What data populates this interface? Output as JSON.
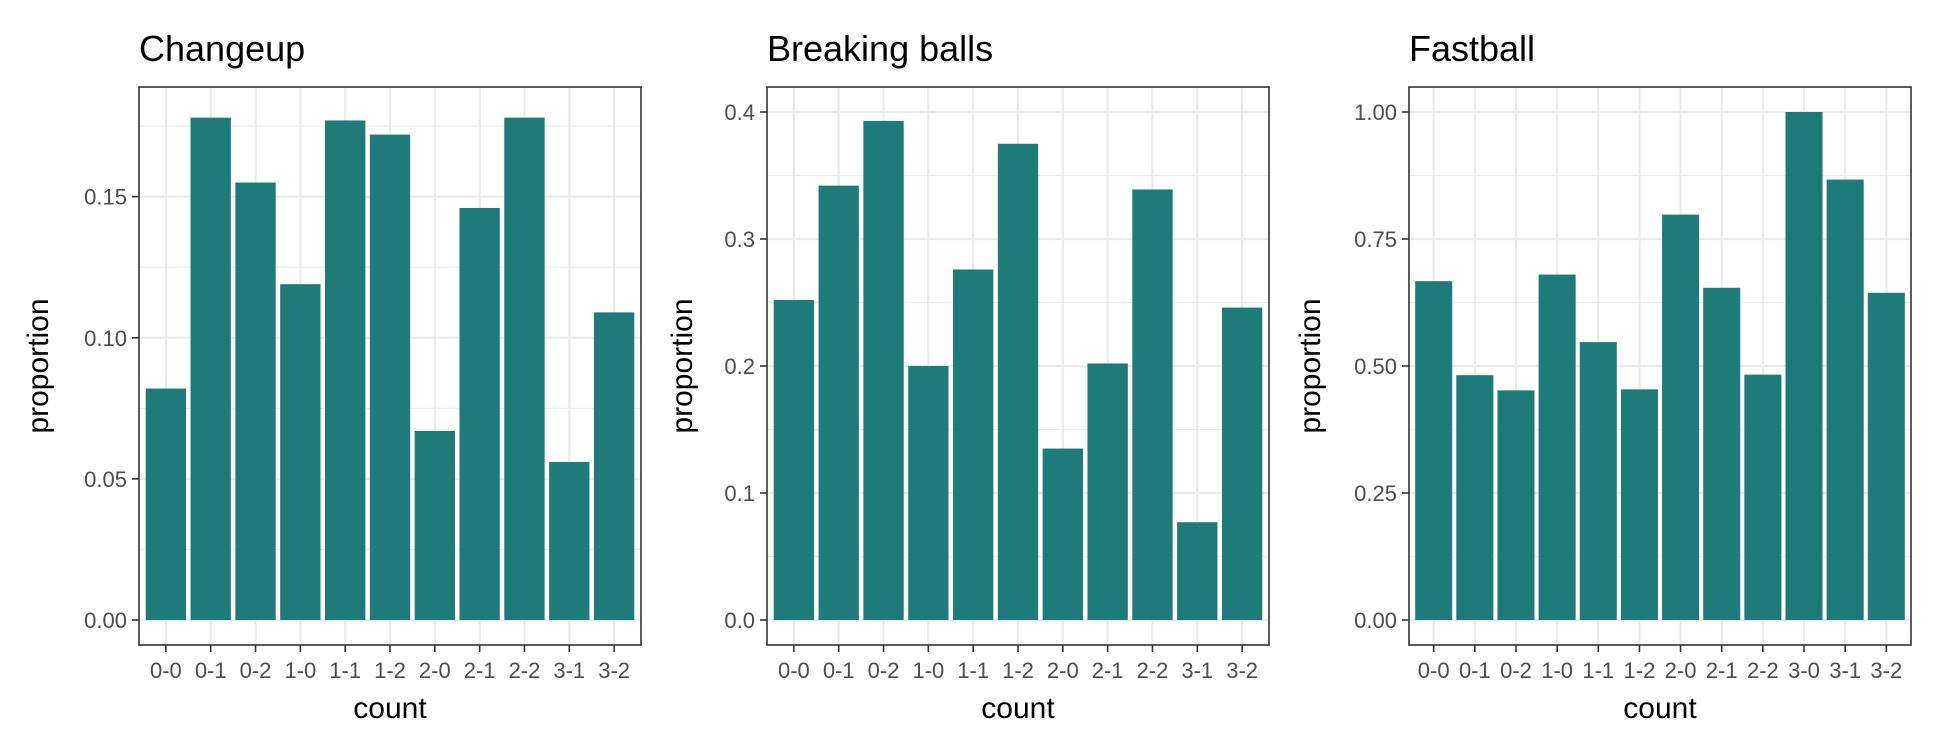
{
  "chart_data": [
    {
      "type": "bar",
      "title": "Changeup",
      "xlabel": "count",
      "ylabel": "proportion",
      "categories": [
        "0-0",
        "0-1",
        "0-2",
        "1-0",
        "1-1",
        "1-2",
        "2-0",
        "2-1",
        "2-2",
        "3-1",
        "3-2"
      ],
      "values": [
        0.082,
        0.178,
        0.155,
        0.119,
        0.177,
        0.172,
        0.067,
        0.146,
        0.178,
        0.056,
        0.109
      ],
      "ylim": [
        0,
        0.18
      ],
      "yticks": [
        0.0,
        0.05,
        0.1,
        0.15
      ],
      "ytick_labels": [
        "0.00",
        "0.05",
        "0.10",
        "0.15"
      ],
      "bar_color": "#1f7a7a",
      "grid": true
    },
    {
      "type": "bar",
      "title": "Breaking balls",
      "xlabel": "count",
      "ylabel": "proportion",
      "categories": [
        "0-0",
        "0-1",
        "0-2",
        "1-0",
        "1-1",
        "1-2",
        "2-0",
        "2-1",
        "2-2",
        "3-1",
        "3-2"
      ],
      "values": [
        0.252,
        0.342,
        0.393,
        0.2,
        0.276,
        0.375,
        0.135,
        0.202,
        0.339,
        0.077,
        0.246
      ],
      "ylim": [
        0,
        0.4
      ],
      "yticks": [
        0.0,
        0.1,
        0.2,
        0.3,
        0.4
      ],
      "ytick_labels": [
        "0.0",
        "0.1",
        "0.2",
        "0.3",
        "0.4"
      ],
      "bar_color": "#1f7a7a",
      "grid": true
    },
    {
      "type": "bar",
      "title": "Fastball",
      "xlabel": "count",
      "ylabel": "proportion",
      "categories": [
        "0-0",
        "0-1",
        "0-2",
        "1-0",
        "1-1",
        "1-2",
        "2-0",
        "2-1",
        "2-2",
        "3-0",
        "3-1",
        "3-2"
      ],
      "values": [
        0.667,
        0.482,
        0.452,
        0.68,
        0.547,
        0.454,
        0.798,
        0.654,
        0.483,
        1.0,
        0.867,
        0.644
      ],
      "ylim": [
        0,
        1.0
      ],
      "yticks": [
        0.0,
        0.25,
        0.5,
        0.75,
        1.0
      ],
      "ytick_labels": [
        "0.00",
        "0.25",
        "0.50",
        "0.75",
        "1.00"
      ],
      "bar_color": "#1f7a7a",
      "grid": true
    }
  ]
}
